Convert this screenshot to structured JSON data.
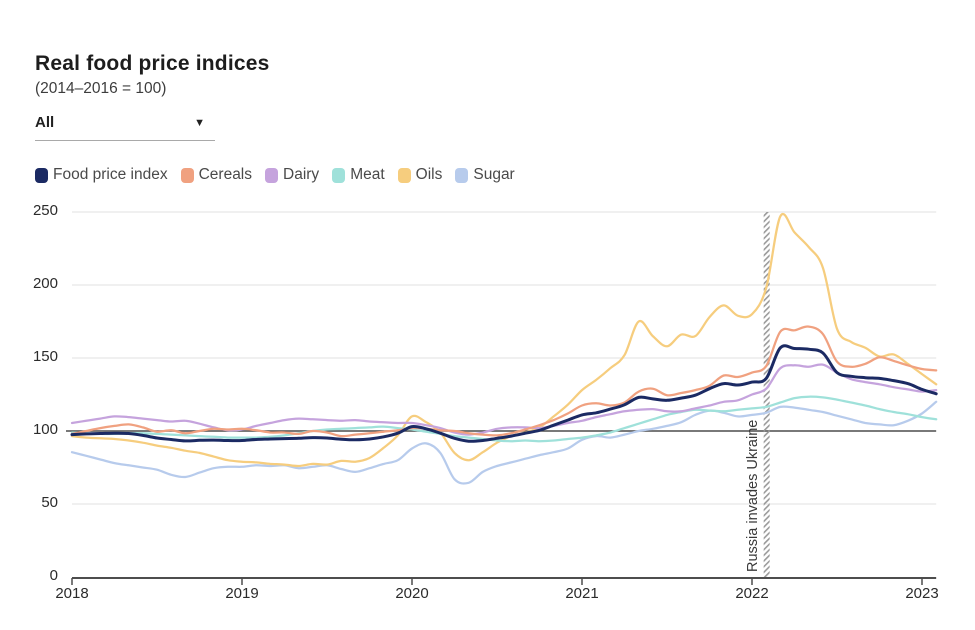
{
  "header": {
    "title": "Real food price indices",
    "subtitle": "(2014–2016 = 100)"
  },
  "filter": {
    "value": "All",
    "icon": "chevron-down"
  },
  "chart_data": {
    "type": "line",
    "title": "Real food price indices",
    "subtitle": "(2014–2016 = 100)",
    "x_unit": "month",
    "x_start": "2018-01",
    "x_end": "2023-02",
    "xticks": [
      2018,
      2019,
      2020,
      2021,
      2022,
      2023
    ],
    "yticks": [
      0,
      50,
      100,
      150,
      200,
      250
    ],
    "ylim": [
      0,
      250
    ],
    "reference_line": 100,
    "grid": "horizontal",
    "legend_position": "top",
    "annotation": {
      "label": "Russia invades Ukraine",
      "date_position": "2022-02"
    },
    "colors": {
      "axis": "#4d4d4d",
      "grid": "#e7e7e7",
      "reference": "#4d4d4d",
      "hatch": "#9a9a9a"
    },
    "series": [
      {
        "name": "Food price index",
        "color": "#1b2a63",
        "width": 3,
        "values": [
          97.5,
          98,
          98.3,
          98.5,
          98.3,
          97,
          95.2,
          94.2,
          93.2,
          93.6,
          93.8,
          93.5,
          93.5,
          94.2,
          94.5,
          94.8,
          95,
          95.5,
          95.2,
          94.4,
          94,
          94.5,
          96,
          98.5,
          103,
          101.5,
          98.5,
          95,
          93,
          93.5,
          95,
          96.5,
          98.5,
          100.5,
          104,
          107.5,
          111,
          112.5,
          115,
          118,
          123,
          122,
          121,
          122.5,
          124.5,
          129,
          132.5,
          131.5,
          133.5,
          136,
          157,
          156.5,
          156,
          153.5,
          140,
          137.5,
          136.5,
          136,
          134.5,
          132.5,
          128.5,
          125.5
        ]
      },
      {
        "name": "Cereals",
        "color": "#f0a180",
        "width": 2.25,
        "values": [
          98,
          100,
          102,
          103.5,
          104.5,
          102.5,
          99.5,
          100.5,
          98.5,
          100,
          101.5,
          101,
          101.5,
          100.5,
          99,
          99,
          98,
          100,
          99,
          96.5,
          97.5,
          98.5,
          99.5,
          100.5,
          102,
          101.5,
          100.5,
          100,
          98.5,
          97.5,
          97,
          98.5,
          101,
          104,
          107.5,
          112,
          117.5,
          119,
          117.5,
          119.5,
          127,
          129,
          124.5,
          126,
          128,
          131,
          138,
          137,
          140,
          144.5,
          168,
          169,
          171.5,
          166.5,
          147.5,
          144,
          146,
          150.5,
          148,
          145,
          142.5,
          141.5
        ]
      },
      {
        "name": "Dairy",
        "color": "#c5a3dd",
        "width": 2.25,
        "values": [
          105.5,
          107,
          108.5,
          110,
          109.5,
          108.5,
          107.5,
          106.5,
          107,
          105,
          102.5,
          100.5,
          101,
          103.5,
          105.5,
          107.5,
          108.5,
          108,
          107.5,
          107,
          107.5,
          106.5,
          106,
          105.5,
          105.5,
          104,
          102,
          99,
          97.5,
          99,
          101.5,
          102.5,
          102.5,
          102,
          103.5,
          105.5,
          107,
          109.5,
          111.5,
          113.5,
          114.5,
          115,
          113.5,
          113.5,
          115.5,
          117.5,
          120,
          121,
          125,
          129,
          143,
          145,
          144,
          145.5,
          140,
          135.5,
          133.5,
          132,
          130,
          128.5,
          127,
          128
        ]
      },
      {
        "name": "Meat",
        "color": "#9fe1da",
        "width": 2.25,
        "values": [
          99,
          98.5,
          98,
          98,
          98.5,
          98.5,
          98,
          97.5,
          97,
          96.5,
          96,
          95.5,
          95.5,
          95.5,
          96,
          97,
          98.5,
          100,
          101,
          101.5,
          102,
          102.5,
          103,
          102,
          101,
          99.5,
          98,
          96.5,
          95.5,
          94.5,
          93.5,
          93,
          93.5,
          93,
          93.5,
          94.5,
          95.5,
          97,
          99,
          102,
          105,
          108,
          111,
          113,
          114.5,
          114,
          113.5,
          114.5,
          115.5,
          116.5,
          119.5,
          122.5,
          123.5,
          123,
          121.5,
          119.5,
          117.5,
          115,
          113,
          111.5,
          109.5,
          108
        ]
      },
      {
        "name": "Oils",
        "color": "#f6cd7e",
        "width": 2.25,
        "values": [
          96.5,
          95.5,
          95,
          94.5,
          93.5,
          92,
          90,
          88.5,
          86.5,
          85,
          82.5,
          80,
          79,
          78.5,
          77.5,
          77,
          76,
          77.5,
          77,
          79.5,
          79,
          81.5,
          88.5,
          97,
          110,
          106,
          99,
          85,
          80,
          85.5,
          92,
          96.5,
          99,
          102.5,
          110,
          118,
          128,
          135,
          143,
          152,
          175,
          165,
          158,
          166,
          165,
          178,
          186,
          179,
          180,
          198,
          247,
          236,
          226,
          212,
          170,
          161,
          157,
          151,
          152.5,
          146,
          139,
          132
        ]
      },
      {
        "name": "Sugar",
        "color": "#b7cbec",
        "width": 2.25,
        "values": [
          85.5,
          83,
          80.5,
          78,
          76.5,
          75,
          73.5,
          70,
          68.5,
          71.5,
          74.5,
          75.5,
          75.5,
          76.5,
          76,
          76.5,
          74.5,
          75.5,
          76.5,
          74,
          72,
          74.5,
          77.5,
          80,
          88,
          91.5,
          85,
          67,
          64.5,
          72,
          76,
          78.5,
          81,
          83.5,
          85.5,
          88,
          94,
          96.5,
          95.5,
          97.5,
          100,
          101.5,
          103.5,
          106,
          111,
          114,
          112.5,
          110,
          111,
          112.5,
          116.5,
          116,
          114.5,
          113,
          110.5,
          108,
          105.5,
          104.5,
          104,
          107,
          112,
          120
        ]
      }
    ]
  }
}
